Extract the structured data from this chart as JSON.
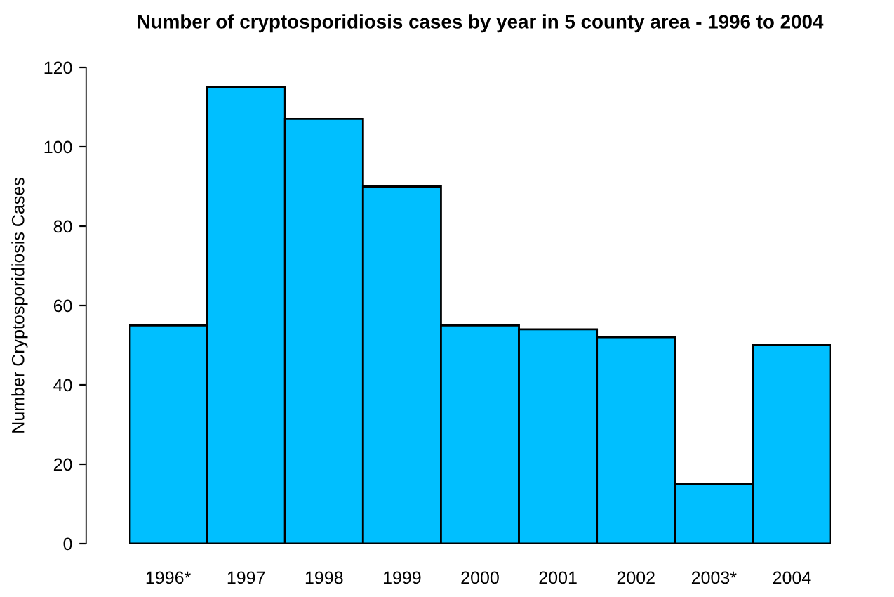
{
  "chart_data": {
    "type": "bar",
    "title": "Number of cryptosporidiosis cases by year in 5 county area - 1996 to 2004",
    "ylabel": "Number Cryptosporidiosis Cases",
    "categories": [
      "1996*",
      "1997",
      "1998",
      "1999",
      "2000",
      "2001",
      "2002",
      "2003*",
      "2004"
    ],
    "values": [
      55,
      115,
      107,
      90,
      55,
      54,
      52,
      15,
      50
    ],
    "color": "#00bfff",
    "ylim": [
      0,
      120
    ],
    "yticks": [
      0,
      20,
      40,
      60,
      80,
      100,
      120
    ],
    "grid": false
  }
}
